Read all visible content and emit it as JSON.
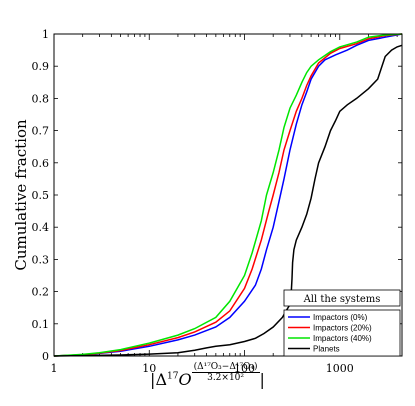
{
  "chart_data": {
    "type": "line",
    "ylabel": "Cumulative fraction",
    "xlabel_parts": {
      "bar_left": "|",
      "delta": "Δ",
      "sup17": "17",
      "O": "O",
      "frac_num": "(Δ¹⁷O₃−Δ¹⁷O₄)",
      "frac_den": "3.2×10²",
      "bar_right": "|"
    },
    "xscale": "log",
    "xlim": [
      1,
      4500
    ],
    "ylim": [
      0,
      1
    ],
    "x_ticks": [
      1,
      10,
      100,
      1000
    ],
    "x_tick_labels": [
      "1",
      "10",
      "100",
      "1000"
    ],
    "y_ticks": [
      0,
      0.1,
      0.2,
      0.3,
      0.4,
      0.5,
      0.6,
      0.7,
      0.8,
      0.9,
      1
    ],
    "y_tick_labels": [
      "0",
      "0.1",
      "0.2",
      "0.3",
      "0.4",
      "0.5",
      "0.6",
      "0.7",
      "0.8",
      "0.9",
      "1"
    ],
    "grid": false,
    "legend_title": "All the systems",
    "legend_position": "bottom-right",
    "series": [
      {
        "name": "Impactors (0%)",
        "color": "#0000ff",
        "points": [
          [
            1,
            0
          ],
          [
            2,
            0.004
          ],
          [
            3,
            0.008
          ],
          [
            5,
            0.015
          ],
          [
            10,
            0.03
          ],
          [
            20,
            0.05
          ],
          [
            30,
            0.065
          ],
          [
            50,
            0.09
          ],
          [
            70,
            0.12
          ],
          [
            100,
            0.17
          ],
          [
            130,
            0.22
          ],
          [
            150,
            0.27
          ],
          [
            170,
            0.33
          ],
          [
            200,
            0.4
          ],
          [
            230,
            0.48
          ],
          [
            260,
            0.55
          ],
          [
            300,
            0.64
          ],
          [
            350,
            0.72
          ],
          [
            400,
            0.78
          ],
          [
            450,
            0.82
          ],
          [
            500,
            0.86
          ],
          [
            600,
            0.9
          ],
          [
            700,
            0.92
          ],
          [
            900,
            0.935
          ],
          [
            1200,
            0.95
          ],
          [
            1500,
            0.965
          ],
          [
            2000,
            0.98
          ],
          [
            3000,
            0.99
          ],
          [
            4500,
            1.0
          ]
        ]
      },
      {
        "name": "Impactors (20%)",
        "color": "#ff0000",
        "points": [
          [
            1,
            0
          ],
          [
            2,
            0.004
          ],
          [
            3,
            0.009
          ],
          [
            5,
            0.017
          ],
          [
            10,
            0.035
          ],
          [
            20,
            0.057
          ],
          [
            30,
            0.075
          ],
          [
            50,
            0.105
          ],
          [
            70,
            0.14
          ],
          [
            100,
            0.21
          ],
          [
            120,
            0.27
          ],
          [
            150,
            0.36
          ],
          [
            180,
            0.45
          ],
          [
            200,
            0.5
          ],
          [
            230,
            0.57
          ],
          [
            260,
            0.64
          ],
          [
            300,
            0.7
          ],
          [
            350,
            0.76
          ],
          [
            400,
            0.8
          ],
          [
            450,
            0.84
          ],
          [
            500,
            0.87
          ],
          [
            600,
            0.91
          ],
          [
            800,
            0.94
          ],
          [
            1000,
            0.955
          ],
          [
            1500,
            0.97
          ],
          [
            2000,
            0.985
          ],
          [
            3000,
            0.995
          ],
          [
            4500,
            1.0
          ]
        ]
      },
      {
        "name": "Impactors (40%)",
        "color": "#00e600",
        "points": [
          [
            1,
            0
          ],
          [
            2,
            0.005
          ],
          [
            3,
            0.01
          ],
          [
            5,
            0.02
          ],
          [
            10,
            0.04
          ],
          [
            20,
            0.065
          ],
          [
            30,
            0.085
          ],
          [
            50,
            0.12
          ],
          [
            70,
            0.17
          ],
          [
            100,
            0.25
          ],
          [
            120,
            0.32
          ],
          [
            150,
            0.42
          ],
          [
            170,
            0.5
          ],
          [
            200,
            0.57
          ],
          [
            230,
            0.64
          ],
          [
            260,
            0.71
          ],
          [
            300,
            0.77
          ],
          [
            350,
            0.81
          ],
          [
            400,
            0.85
          ],
          [
            450,
            0.88
          ],
          [
            500,
            0.9
          ],
          [
            600,
            0.92
          ],
          [
            800,
            0.945
          ],
          [
            1000,
            0.96
          ],
          [
            1500,
            0.975
          ],
          [
            2000,
            0.99
          ],
          [
            3000,
            0.997
          ],
          [
            4500,
            1.0
          ]
        ]
      },
      {
        "name": "Planets",
        "color": "#000000",
        "points": [
          [
            1,
            0
          ],
          [
            5,
            0.003
          ],
          [
            10,
            0.006
          ],
          [
            20,
            0.01
          ],
          [
            30,
            0.018
          ],
          [
            40,
            0.025
          ],
          [
            50,
            0.03
          ],
          [
            70,
            0.035
          ],
          [
            100,
            0.045
          ],
          [
            130,
            0.055
          ],
          [
            160,
            0.07
          ],
          [
            200,
            0.09
          ],
          [
            250,
            0.12
          ],
          [
            280,
            0.145
          ],
          [
            300,
            0.16
          ],
          [
            310,
            0.2
          ],
          [
            315,
            0.24
          ],
          [
            320,
            0.29
          ],
          [
            330,
            0.33
          ],
          [
            350,
            0.36
          ],
          [
            400,
            0.4
          ],
          [
            450,
            0.44
          ],
          [
            500,
            0.49
          ],
          [
            550,
            0.55
          ],
          [
            600,
            0.6
          ],
          [
            700,
            0.65
          ],
          [
            800,
            0.7
          ],
          [
            900,
            0.73
          ],
          [
            1000,
            0.76
          ],
          [
            1200,
            0.78
          ],
          [
            1500,
            0.8
          ],
          [
            2000,
            0.83
          ],
          [
            2500,
            0.86
          ],
          [
            3000,
            0.93
          ],
          [
            3500,
            0.95
          ],
          [
            4000,
            0.96
          ],
          [
            4500,
            0.965
          ]
        ]
      }
    ]
  }
}
